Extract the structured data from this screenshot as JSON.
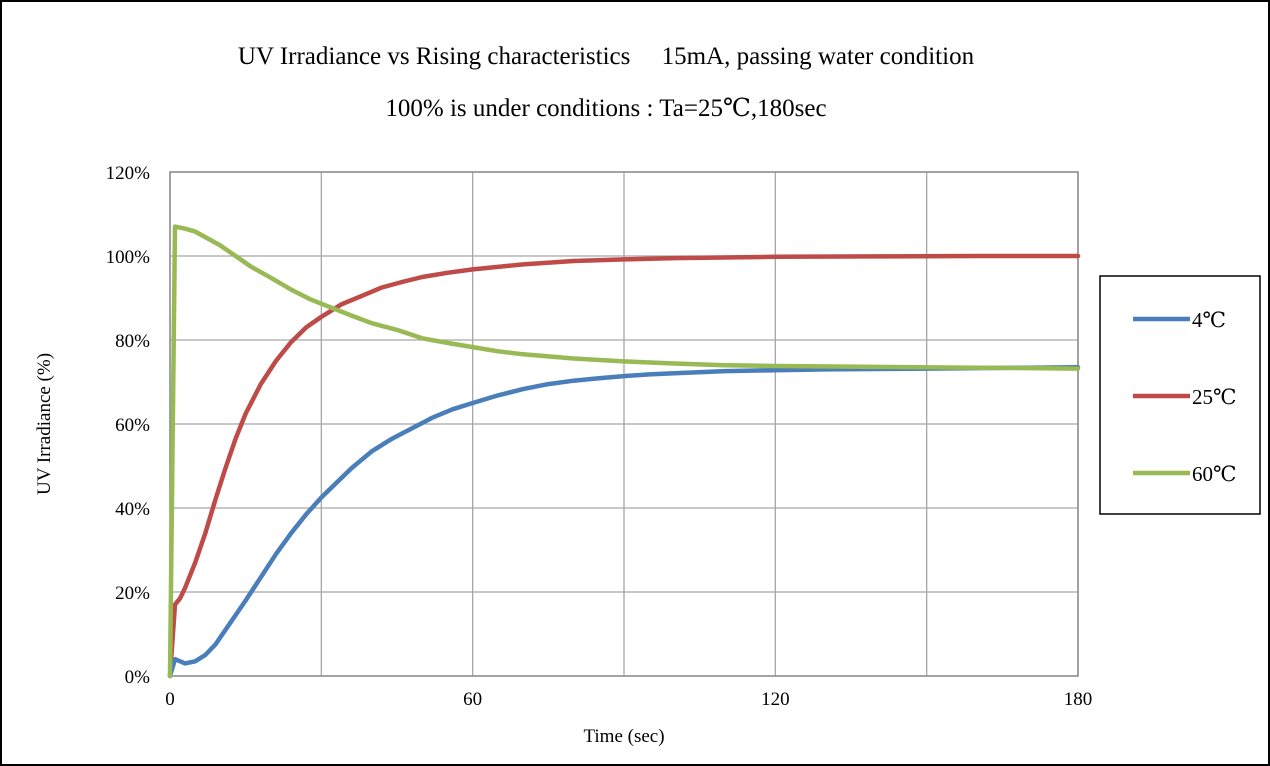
{
  "chart_data": {
    "type": "line",
    "title": "UV Irradiance vs Rising characteristics　 15mA, passing water condition",
    "subtitle": "100% is under conditions : Ta=25℃,180sec",
    "xlabel": "Time (sec)",
    "ylabel": "UV Irradiance (%)",
    "xlim": [
      0,
      180
    ],
    "ylim": [
      0,
      120
    ],
    "x_ticks": [
      0,
      60,
      120,
      180
    ],
    "x_tick_labels": [
      "0",
      "60",
      "120",
      "180"
    ],
    "y_ticks": [
      0,
      20,
      40,
      60,
      80,
      100,
      120
    ],
    "y_tick_labels": [
      "0%",
      "20%",
      "40%",
      "60%",
      "80%",
      "100%",
      "120%"
    ],
    "x_gridlines": [
      0,
      30,
      60,
      90,
      120,
      150,
      180
    ],
    "grid": true,
    "legend_position": "right",
    "series": [
      {
        "name": "4℃",
        "color": "#4a7ebb",
        "x": [
          0,
          1,
          2,
          3,
          5,
          7,
          9,
          11,
          13,
          15,
          18,
          21,
          24,
          27,
          30,
          33,
          36,
          40,
          44,
          48,
          52,
          56,
          60,
          65,
          70,
          75,
          80,
          85,
          90,
          95,
          100,
          110,
          120,
          130,
          140,
          150,
          160,
          170,
          180
        ],
        "values": [
          0,
          4,
          3.5,
          3,
          3.5,
          5,
          7.5,
          11,
          14.5,
          18,
          23.5,
          29,
          34,
          38.5,
          42.5,
          46,
          49.5,
          53.5,
          56.5,
          59,
          61.5,
          63.5,
          65,
          66.8,
          68.3,
          69.5,
          70.3,
          70.9,
          71.4,
          71.8,
          72.1,
          72.6,
          72.8,
          73,
          73.1,
          73.2,
          73.3,
          73.4,
          73.5
        ]
      },
      {
        "name": "25℃",
        "color": "#be4b48",
        "x": [
          0,
          1,
          2,
          3,
          5,
          7,
          9,
          11,
          13,
          15,
          18,
          21,
          24,
          27,
          30,
          34,
          38,
          42,
          46,
          50,
          55,
          60,
          65,
          70,
          80,
          90,
          100,
          120,
          140,
          160,
          180
        ],
        "values": [
          0,
          17,
          18.5,
          21,
          27,
          34,
          42,
          49.5,
          56.5,
          62.5,
          69.5,
          75,
          79.5,
          83,
          85.5,
          88.5,
          90.5,
          92.5,
          93.8,
          95,
          96,
          96.8,
          97.4,
          98,
          98.8,
          99.2,
          99.5,
          99.8,
          99.9,
          100,
          100
        ]
      },
      {
        "name": "60℃",
        "color": "#98b954",
        "x": [
          0,
          1,
          3,
          5,
          7,
          10,
          13,
          16,
          20,
          24,
          28,
          32,
          36,
          40,
          45,
          50,
          55,
          60,
          65,
          70,
          80,
          90,
          100,
          110,
          120,
          140,
          160,
          180
        ],
        "values": [
          0,
          107,
          106.5,
          105.8,
          104.5,
          102.5,
          100,
          97.5,
          94.8,
          92,
          89.6,
          87.7,
          85.8,
          84,
          82.4,
          80.4,
          79.3,
          78.3,
          77.3,
          76.6,
          75.6,
          74.9,
          74.4,
          74,
          73.8,
          73.6,
          73.4,
          73.2
        ]
      }
    ]
  }
}
